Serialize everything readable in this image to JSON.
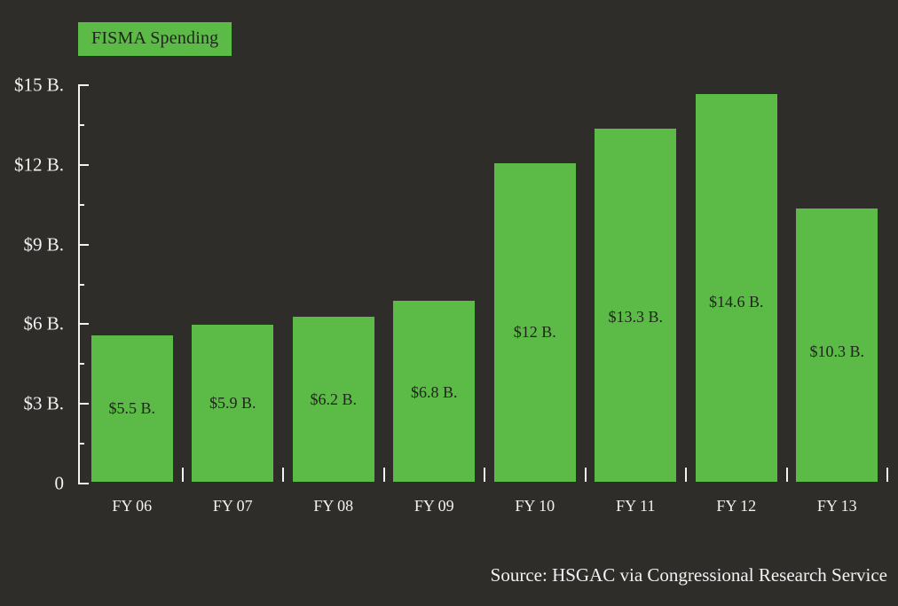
{
  "colors": {
    "background": "#2e2d2a",
    "accent": "#5cba47",
    "axis": "#f2f2f2",
    "light_text": "#f2f2f2",
    "dark_text": "#20251b"
  },
  "source_note": "Source: HSGAC via Congressional Research Service",
  "chart_data": {
    "type": "bar",
    "title": "FISMA Spending",
    "categories": [
      "FY 06",
      "FY 07",
      "FY 08",
      "FY 09",
      "FY 10",
      "FY 11",
      "FY 12",
      "FY 13"
    ],
    "values": [
      5.5,
      5.9,
      6.2,
      6.8,
      12,
      13.3,
      14.6,
      10.3
    ],
    "bar_labels": [
      "$5.5 B.",
      "$5.9 B.",
      "$6.2 B.",
      "$6.8 B.",
      "$12 B.",
      "$13.3 B.",
      "$14.6 B.",
      "$10.3 B."
    ],
    "xlabel": "",
    "ylabel": "",
    "ylim": [
      0,
      15
    ],
    "y_ticks": [
      {
        "label": "$15 B.",
        "value": 15
      },
      {
        "label": "$12 B.",
        "value": 12
      },
      {
        "label": "$9 B.",
        "value": 9
      },
      {
        "label": "$6 B.",
        "value": 6
      },
      {
        "label": "$3 B.",
        "value": 3
      },
      {
        "label": "0",
        "value": 0
      }
    ],
    "y_minor_ticks": [
      13.5,
      10.5,
      7.5,
      4.5,
      1.5
    ],
    "grid": "off",
    "legend": "none",
    "annotation": "Source: HSGAC via Congressional Research Service"
  }
}
